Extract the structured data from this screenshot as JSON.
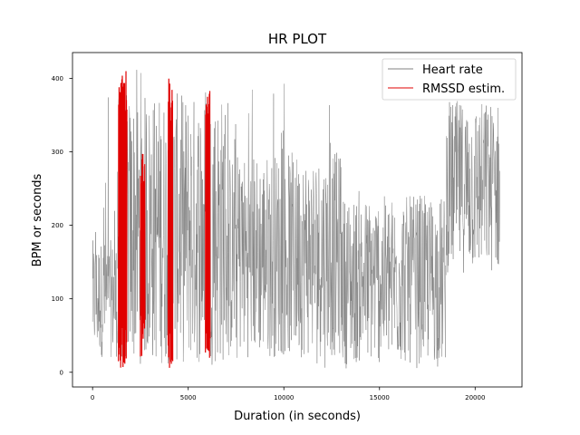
{
  "chart_data": {
    "type": "line",
    "title": "HR PLOT",
    "xlabel": "Duration (in seconds)",
    "ylabel": "BPM or seconds",
    "xlim": [
      -1050,
      22450
    ],
    "ylim": [
      -20,
      435
    ],
    "xticks": [
      0,
      5000,
      10000,
      15000,
      20000
    ],
    "yticks": [
      0,
      100,
      200,
      300,
      400
    ],
    "xtick_labels": [
      "0",
      "5000",
      "10000",
      "15000",
      "20000"
    ],
    "ytick_labels": [
      "0",
      "100",
      "200",
      "300",
      "400"
    ],
    "grid": false,
    "legend_position": "top-right",
    "series": [
      {
        "name": "Heart rate",
        "color": "#808080",
        "style": "dense-oscillating",
        "segments": [
          {
            "x_start": 0,
            "x_end": 1300,
            "low": 5,
            "high": 400,
            "typical_low": 20,
            "typical_high": 180
          },
          {
            "x_start": 1300,
            "x_end": 7000,
            "low": 5,
            "high": 415,
            "typical_low": 10,
            "typical_high": 380
          },
          {
            "x_start": 7000,
            "x_end": 13000,
            "low": 5,
            "high": 415,
            "typical_low": 20,
            "typical_high": 300
          },
          {
            "x_start": 13000,
            "x_end": 18500,
            "low": 5,
            "high": 250,
            "typical_low": 10,
            "typical_high": 240
          },
          {
            "x_start": 18500,
            "x_end": 21300,
            "low": 128,
            "high": 375,
            "typical_low": 135,
            "typical_high": 370
          }
        ]
      },
      {
        "name": "RMSSD estim.",
        "color": "#e00000",
        "style": "bursts",
        "bursts": [
          {
            "x_start": 1350,
            "x_end": 1800,
            "low": 5,
            "high": 410
          },
          {
            "x_start": 2500,
            "x_end": 2750,
            "low": 20,
            "high": 305
          },
          {
            "x_start": 3950,
            "x_end": 4200,
            "low": 5,
            "high": 400
          },
          {
            "x_start": 5900,
            "x_end": 6150,
            "low": 15,
            "high": 410
          }
        ]
      }
    ]
  }
}
